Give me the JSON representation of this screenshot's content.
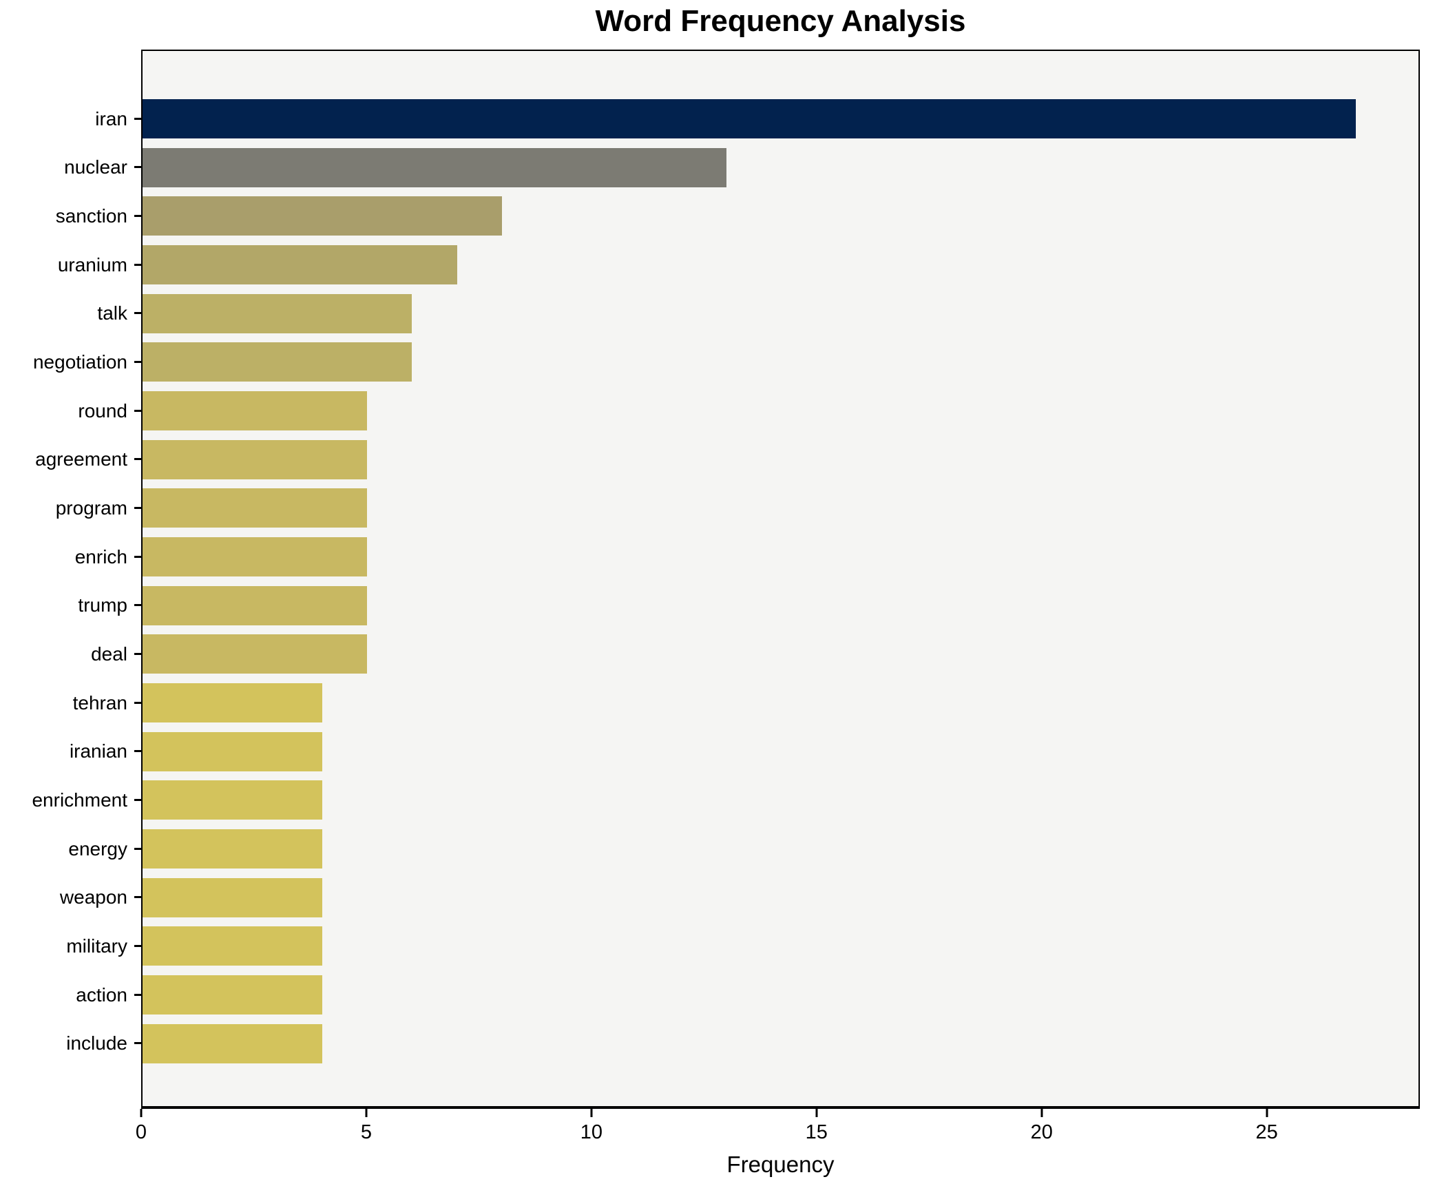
{
  "chart_data": {
    "type": "bar",
    "orientation": "horizontal",
    "title": "Word Frequency Analysis",
    "xlabel": "Frequency",
    "ylabel": "",
    "categories": [
      "iran",
      "nuclear",
      "sanction",
      "uranium",
      "talk",
      "negotiation",
      "round",
      "agreement",
      "program",
      "enrich",
      "trump",
      "deal",
      "tehran",
      "iranian",
      "enrichment",
      "energy",
      "weapon",
      "military",
      "action",
      "include"
    ],
    "values": [
      27,
      13,
      8,
      7,
      6,
      6,
      5,
      5,
      5,
      5,
      5,
      5,
      4,
      4,
      4,
      4,
      4,
      4,
      4,
      4
    ],
    "bar_colors": [
      "#02224e",
      "#7c7b73",
      "#a99e6b",
      "#b2a768",
      "#bcb066",
      "#bcb066",
      "#c8b862",
      "#c8b862",
      "#c8b862",
      "#c8b862",
      "#c8b862",
      "#c8b862",
      "#d3c35c",
      "#d3c35c",
      "#d3c35c",
      "#d3c35c",
      "#d3c35c",
      "#d3c35c",
      "#d3c35c",
      "#d3c35c"
    ],
    "xticks": [
      0,
      5,
      10,
      15,
      20,
      25
    ],
    "xlim": [
      0,
      28.4
    ],
    "grid": false,
    "legend": null,
    "plot_background": "#f5f5f3",
    "figure_background": "#ffffff"
  }
}
